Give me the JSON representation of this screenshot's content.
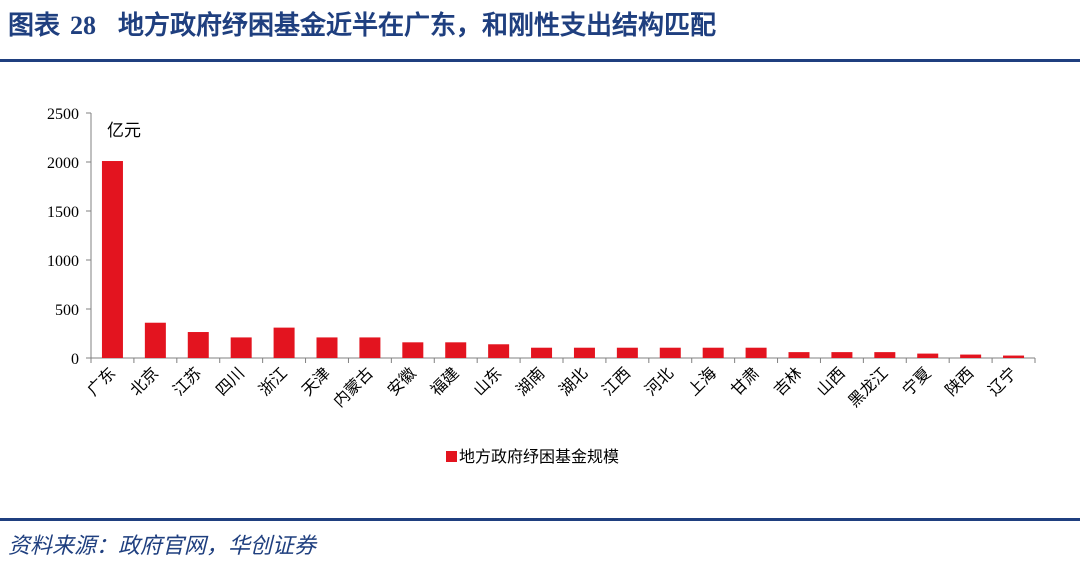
{
  "figure": {
    "label": "图表",
    "number": "28",
    "title": "地方政府纾困基金近半在广东，和刚性支出结构匹配"
  },
  "source": "资料来源：政府官网，华创证券",
  "chart_data": {
    "type": "bar",
    "unit": "亿元",
    "ylim": [
      0,
      2500
    ],
    "yticks": [
      "0",
      "500",
      "1000",
      "1500",
      "2000",
      "2500"
    ],
    "categories": [
      "广东",
      "北京",
      "江苏",
      "四川",
      "浙江",
      "天津",
      "内蒙古",
      "安徽",
      "福建",
      "山东",
      "湖南",
      "湖北",
      "江西",
      "河北",
      "上海",
      "甘肃",
      "吉林",
      "山西",
      "黑龙江",
      "宁夏",
      "陕西",
      "辽宁"
    ],
    "series": [
      {
        "name": "地方政府纾困基金规模",
        "color": "#e3141f",
        "values": [
          2010,
          360,
          265,
          210,
          310,
          210,
          210,
          160,
          160,
          140,
          105,
          105,
          105,
          105,
          105,
          105,
          60,
          60,
          60,
          45,
          35,
          25
        ]
      }
    ],
    "legend_position": "bottom",
    "grid": false
  }
}
